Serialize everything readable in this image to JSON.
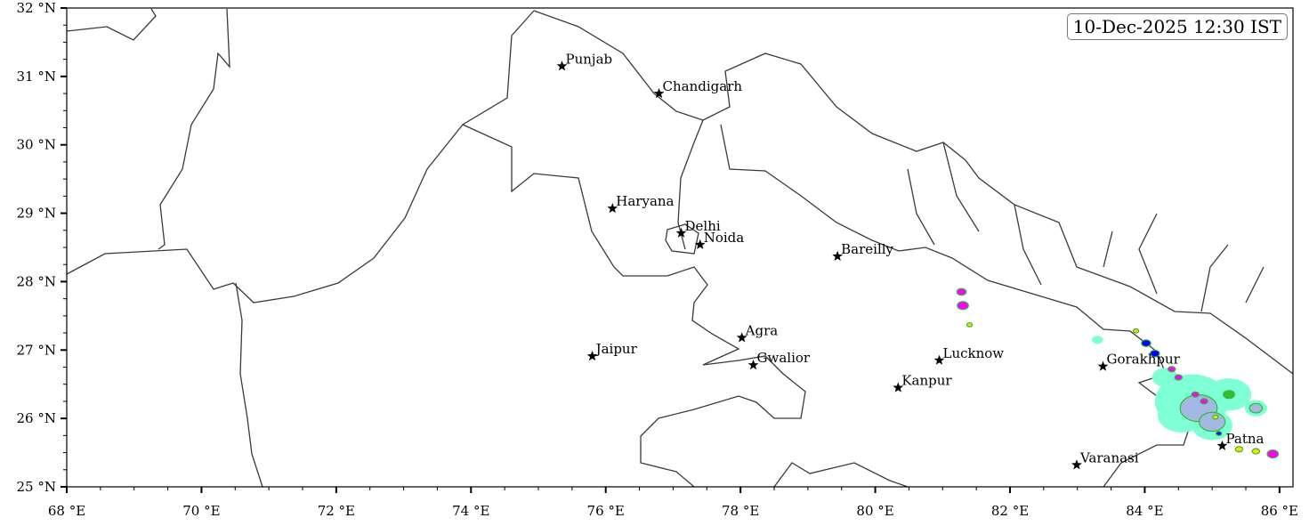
{
  "map": {
    "timestamp": "10-Dec-2025 12:30 IST",
    "extent": {
      "lon": [
        68,
        86.2
      ],
      "lat": [
        25,
        32
      ]
    },
    "x_ticks": [
      {
        "value": 68,
        "label": "68 °E"
      },
      {
        "value": 70,
        "label": "70 °E"
      },
      {
        "value": 72,
        "label": "72 °E"
      },
      {
        "value": 74,
        "label": "74 °E"
      },
      {
        "value": 76,
        "label": "76 °E"
      },
      {
        "value": 78,
        "label": "78 °E"
      },
      {
        "value": 80,
        "label": "80 °E"
      },
      {
        "value": 82,
        "label": "82 °E"
      },
      {
        "value": 84,
        "label": "84 °E"
      },
      {
        "value": 86,
        "label": "86 °E"
      }
    ],
    "y_ticks": [
      {
        "value": 25,
        "label": "25 °N"
      },
      {
        "value": 26,
        "label": "26 °N"
      },
      {
        "value": 27,
        "label": "27 °N"
      },
      {
        "value": 28,
        "label": "28 °N"
      },
      {
        "value": 29,
        "label": "29 °N"
      },
      {
        "value": 30,
        "label": "30 °N"
      },
      {
        "value": 31,
        "label": "31 °N"
      },
      {
        "value": 32,
        "label": "32 °N"
      }
    ],
    "x_minor_step": 0.5,
    "y_minor_step": 0.25,
    "cities": [
      {
        "name": "Punjab",
        "lon": 75.35,
        "lat": 31.15
      },
      {
        "name": "Chandigarh",
        "lon": 76.79,
        "lat": 30.75
      },
      {
        "name": "Haryana",
        "lon": 76.1,
        "lat": 29.07
      },
      {
        "name": "Delhi",
        "lon": 77.12,
        "lat": 28.71
      },
      {
        "name": "Noida",
        "lon": 77.4,
        "lat": 28.54
      },
      {
        "name": "Bareilly",
        "lon": 79.44,
        "lat": 28.37
      },
      {
        "name": "Agra",
        "lon": 78.02,
        "lat": 27.18
      },
      {
        "name": "Jaipur",
        "lon": 75.8,
        "lat": 26.91
      },
      {
        "name": "Gwalior",
        "lon": 78.19,
        "lat": 26.78
      },
      {
        "name": "Lucknow",
        "lon": 80.95,
        "lat": 26.85
      },
      {
        "name": "Kanpur",
        "lon": 80.34,
        "lat": 26.45
      },
      {
        "name": "Gorakhpur",
        "lon": 83.38,
        "lat": 26.76
      },
      {
        "name": "Varanasi",
        "lon": 82.99,
        "lat": 25.32
      },
      {
        "name": "Patna",
        "lon": 85.15,
        "lat": 25.6
      }
    ],
    "marker_icon": "star-icon",
    "precip_colors": {
      "light": "#7fffd4",
      "light_moderate": "#a3b8e3",
      "moderate": "#33bb33",
      "heavy": "#ffd700",
      "very_heavy": "#0000ff",
      "extreme": "#ff00ff"
    },
    "precip_cells": [
      {
        "lon": 84.7,
        "lat": 26.25,
        "level": "light",
        "size": 2.0
      },
      {
        "lon": 84.55,
        "lat": 26.05,
        "level": "light",
        "size": 1.3
      },
      {
        "lon": 85.25,
        "lat": 26.35,
        "level": "light",
        "size": 1.2
      },
      {
        "lon": 85.0,
        "lat": 25.9,
        "level": "light",
        "size": 1.1
      },
      {
        "lon": 85.65,
        "lat": 26.15,
        "level": "light",
        "size": 0.6
      },
      {
        "lon": 84.3,
        "lat": 26.6,
        "level": "light",
        "size": 0.7
      },
      {
        "lon": 83.3,
        "lat": 27.15,
        "level": "light",
        "size": 0.3
      },
      {
        "lon": 84.8,
        "lat": 26.15,
        "level": "light_moderate",
        "size": 1.0
      },
      {
        "lon": 85.0,
        "lat": 25.95,
        "level": "light_moderate",
        "size": 0.7
      },
      {
        "lon": 85.65,
        "lat": 26.15,
        "level": "light_moderate",
        "size": 0.35
      },
      {
        "lon": 85.25,
        "lat": 26.35,
        "level": "moderate",
        "size": 0.3
      },
      {
        "lon": 81.28,
        "lat": 27.85,
        "level": "extreme",
        "size": 0.25
      },
      {
        "lon": 81.3,
        "lat": 27.65,
        "level": "extreme",
        "size": 0.3
      },
      {
        "lon": 81.4,
        "lat": 27.37,
        "level": "heavy",
        "size": 0.15
      },
      {
        "lon": 83.87,
        "lat": 27.28,
        "level": "heavy",
        "size": 0.15
      },
      {
        "lon": 84.02,
        "lat": 27.1,
        "level": "very_heavy",
        "size": 0.25
      },
      {
        "lon": 84.15,
        "lat": 26.95,
        "level": "very_heavy",
        "size": 0.25
      },
      {
        "lon": 84.4,
        "lat": 26.72,
        "level": "extreme",
        "size": 0.2
      },
      {
        "lon": 84.5,
        "lat": 26.6,
        "level": "extreme",
        "size": 0.2
      },
      {
        "lon": 84.75,
        "lat": 26.35,
        "level": "extreme",
        "size": 0.2
      },
      {
        "lon": 84.88,
        "lat": 26.25,
        "level": "extreme",
        "size": 0.2
      },
      {
        "lon": 85.05,
        "lat": 26.02,
        "level": "heavy",
        "size": 0.15
      },
      {
        "lon": 85.1,
        "lat": 25.78,
        "level": "very_heavy",
        "size": 0.15
      },
      {
        "lon": 85.4,
        "lat": 25.55,
        "level": "heavy",
        "size": 0.2
      },
      {
        "lon": 85.65,
        "lat": 25.52,
        "level": "heavy",
        "size": 0.2
      },
      {
        "lon": 85.9,
        "lat": 25.48,
        "level": "extreme",
        "size": 0.3
      }
    ]
  }
}
